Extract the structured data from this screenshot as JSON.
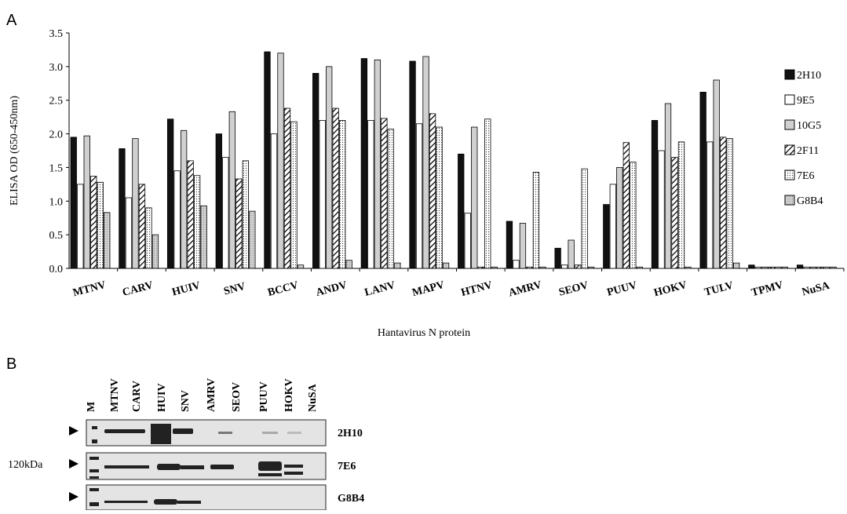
{
  "panel_label": "A",
  "chart_data": {
    "type": "bar",
    "ylabel": "ELISA OD (650-450nm)",
    "xlabel": "Hantavirus N protein",
    "categories": [
      "MTNV",
      "CARV",
      "HUIV",
      "SNV",
      "BCCV",
      "ANDV",
      "LANV",
      "MAPV",
      "HTNV",
      "AMRV",
      "SEOV",
      "PUUV",
      "HOKV",
      "TULV",
      "TPMV",
      "NuSA"
    ],
    "series": [
      {
        "name": "2H10",
        "color": "#111111",
        "values": [
          1.95,
          1.78,
          2.22,
          2.0,
          3.22,
          2.9,
          3.12,
          3.08,
          1.7,
          0.7,
          0.3,
          0.95,
          2.2,
          2.62,
          0.05,
          0.05
        ]
      },
      {
        "name": "9E5",
        "color": "#ffffff",
        "values": [
          1.25,
          1.05,
          1.45,
          1.65,
          2.0,
          2.2,
          2.2,
          2.15,
          0.82,
          0.12,
          0.05,
          1.25,
          1.75,
          1.88,
          0.02,
          0.02
        ]
      },
      {
        "name": "10G5",
        "color": "#d0d0d0",
        "values": [
          1.97,
          1.93,
          2.05,
          2.33,
          3.2,
          3.0,
          3.1,
          3.15,
          2.1,
          0.67,
          0.42,
          1.5,
          2.45,
          2.8,
          0.02,
          0.02
        ]
      },
      {
        "name": "2F11",
        "color": "#ffffff",
        "values": [
          1.37,
          1.25,
          1.6,
          1.33,
          2.38,
          2.38,
          2.23,
          2.3,
          0.02,
          0.02,
          0.05,
          1.87,
          1.65,
          1.95,
          0.02,
          0.02
        ]
      },
      {
        "name": "7E6",
        "color": "#ffffff",
        "values": [
          1.28,
          0.9,
          1.38,
          1.6,
          2.18,
          2.2,
          2.07,
          2.1,
          2.22,
          1.43,
          1.48,
          1.58,
          1.88,
          1.93,
          0.02,
          0.02
        ]
      },
      {
        "name": "G8B4",
        "color": "#cfcfcf",
        "values": [
          0.83,
          0.5,
          0.93,
          0.85,
          0.05,
          0.12,
          0.08,
          0.08,
          0.02,
          0.02,
          0.02,
          0.02,
          0.02,
          0.08,
          0.02,
          0.02
        ]
      }
    ],
    "ylim": [
      0,
      3.5
    ],
    "yticks": [
      {
        "value": 0,
        "label": "0.0"
      },
      0.5,
      {
        "value": 1,
        "label": "1.0"
      },
      1.5,
      {
        "value": 2,
        "label": "2.0"
      },
      2.5,
      {
        "value": 3,
        "label": "3.0"
      },
      3.5
    ]
  },
  "blot": {
    "label": "B",
    "lanes": [
      "M",
      "MTNV",
      "CARV",
      "HUIV",
      "SNV",
      "AMRV",
      "SEOV",
      "PUUV",
      "HOKV",
      "NuSA"
    ],
    "antibodies": [
      "2H10",
      "7E6",
      "G8B4"
    ],
    "marker": "120kDa"
  }
}
